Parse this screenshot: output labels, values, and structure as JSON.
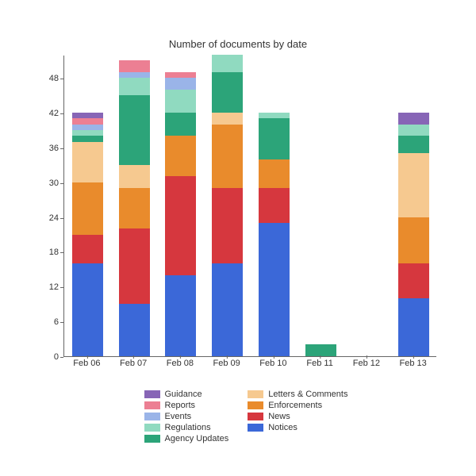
{
  "title": "Number of documents by date",
  "title_fontsize": 13,
  "tick_fontsize": 11,
  "legend_fontsize": 11,
  "background_color": "#ffffff",
  "axis_color": "#666666",
  "text_color": "#333333",
  "ylim": [
    0,
    52
  ],
  "ytick_step": 6,
  "bar_width": 0.66,
  "categories": [
    "Feb 06",
    "Feb 07",
    "Feb 08",
    "Feb 09",
    "Feb 10",
    "Feb 11",
    "Feb 12",
    "Feb 13"
  ],
  "series": [
    {
      "name": "Notices",
      "color": "#3b68d8",
      "values": [
        16,
        9,
        14,
        16,
        23,
        0,
        0,
        10
      ]
    },
    {
      "name": "News",
      "color": "#d6373e",
      "values": [
        5,
        13,
        17,
        13,
        6,
        0,
        0,
        6
      ]
    },
    {
      "name": "Enforcements",
      "color": "#e98b2c",
      "values": [
        9,
        7,
        7,
        11,
        5,
        0,
        0,
        8
      ]
    },
    {
      "name": "Letters & Comments",
      "color": "#f6c990",
      "values": [
        7,
        4,
        0,
        2,
        0,
        0,
        0,
        11
      ]
    },
    {
      "name": "Agency Updates",
      "color": "#2ca479",
      "values": [
        1,
        12,
        4,
        7,
        7,
        2,
        0,
        3
      ]
    },
    {
      "name": "Regulations",
      "color": "#90dac0",
      "values": [
        1,
        3,
        4,
        3,
        1,
        0,
        0,
        2
      ]
    },
    {
      "name": "Events",
      "color": "#9ab4e8",
      "values": [
        1,
        1,
        2,
        0,
        0,
        0,
        0,
        0
      ]
    },
    {
      "name": "Reports",
      "color": "#ec7f93",
      "values": [
        1,
        2,
        1,
        0,
        0,
        0,
        0,
        0
      ]
    },
    {
      "name": "Guidance",
      "color": "#8765b6",
      "values": [
        1,
        0,
        0,
        0,
        0,
        0,
        0,
        2
      ]
    }
  ],
  "legend_order": [
    "Guidance",
    "Reports",
    "Events",
    "Regulations",
    "Agency Updates",
    "Letters & Comments",
    "Enforcements",
    "News",
    "Notices"
  ]
}
